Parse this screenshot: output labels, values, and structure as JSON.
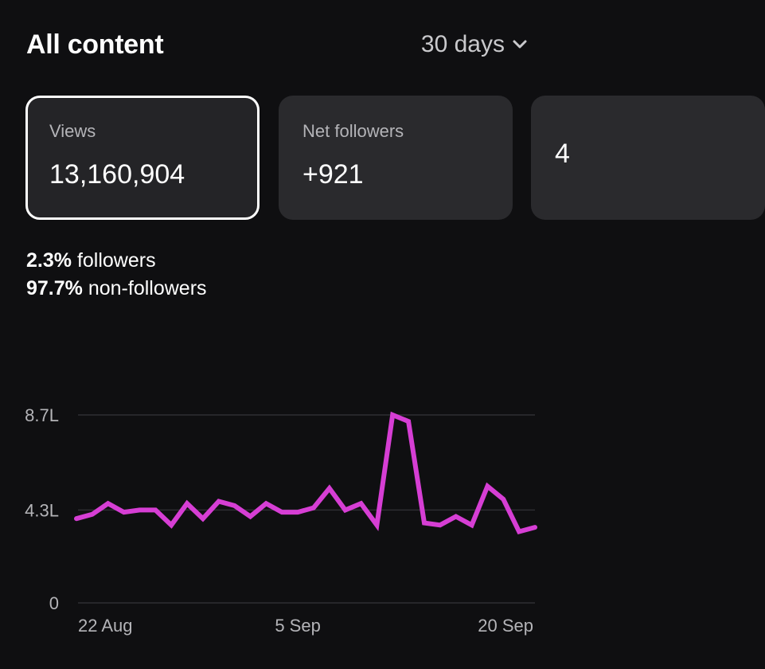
{
  "header": {
    "title": "All content",
    "range_label": "30 days"
  },
  "cards": [
    {
      "label": "Views",
      "value": "13,160,904",
      "active": true
    },
    {
      "label": "Net followers",
      "value": "+921",
      "active": false
    },
    {
      "label": "",
      "value": "4",
      "active": false
    }
  ],
  "audience_split": {
    "followers_pct": "2.3%",
    "followers_label": "followers",
    "non_followers_pct": "97.7%",
    "non_followers_label": "non-followers"
  },
  "chart_data": {
    "type": "line",
    "series": [
      {
        "color": "#d63ed4",
        "values": [
          3.9,
          4.1,
          4.6,
          4.2,
          4.3,
          4.3,
          3.6,
          4.6,
          3.9,
          4.7,
          4.5,
          4.0,
          4.6,
          4.2,
          4.2,
          4.4,
          5.3,
          4.3,
          4.6,
          3.6,
          8.7,
          8.4,
          3.7,
          3.6,
          4.0,
          3.6,
          5.4,
          4.8,
          3.3,
          3.5
        ]
      }
    ],
    "y_ticks": [
      {
        "value": 8.7,
        "label": "8.7L"
      },
      {
        "value": 4.3,
        "label": "4.3L"
      },
      {
        "value": 0,
        "label": "0"
      }
    ],
    "x_ticks": [
      {
        "index": 0,
        "label": "22 Aug"
      },
      {
        "index": 14,
        "label": "5 Sep"
      },
      {
        "index": 29,
        "label": "20 Sep"
      }
    ],
    "ylim": [
      0,
      8.7
    ],
    "grid": true,
    "line_color": "#d63ed4",
    "grid_color": "#2e2e32",
    "text_color": "#b4b4b8"
  }
}
